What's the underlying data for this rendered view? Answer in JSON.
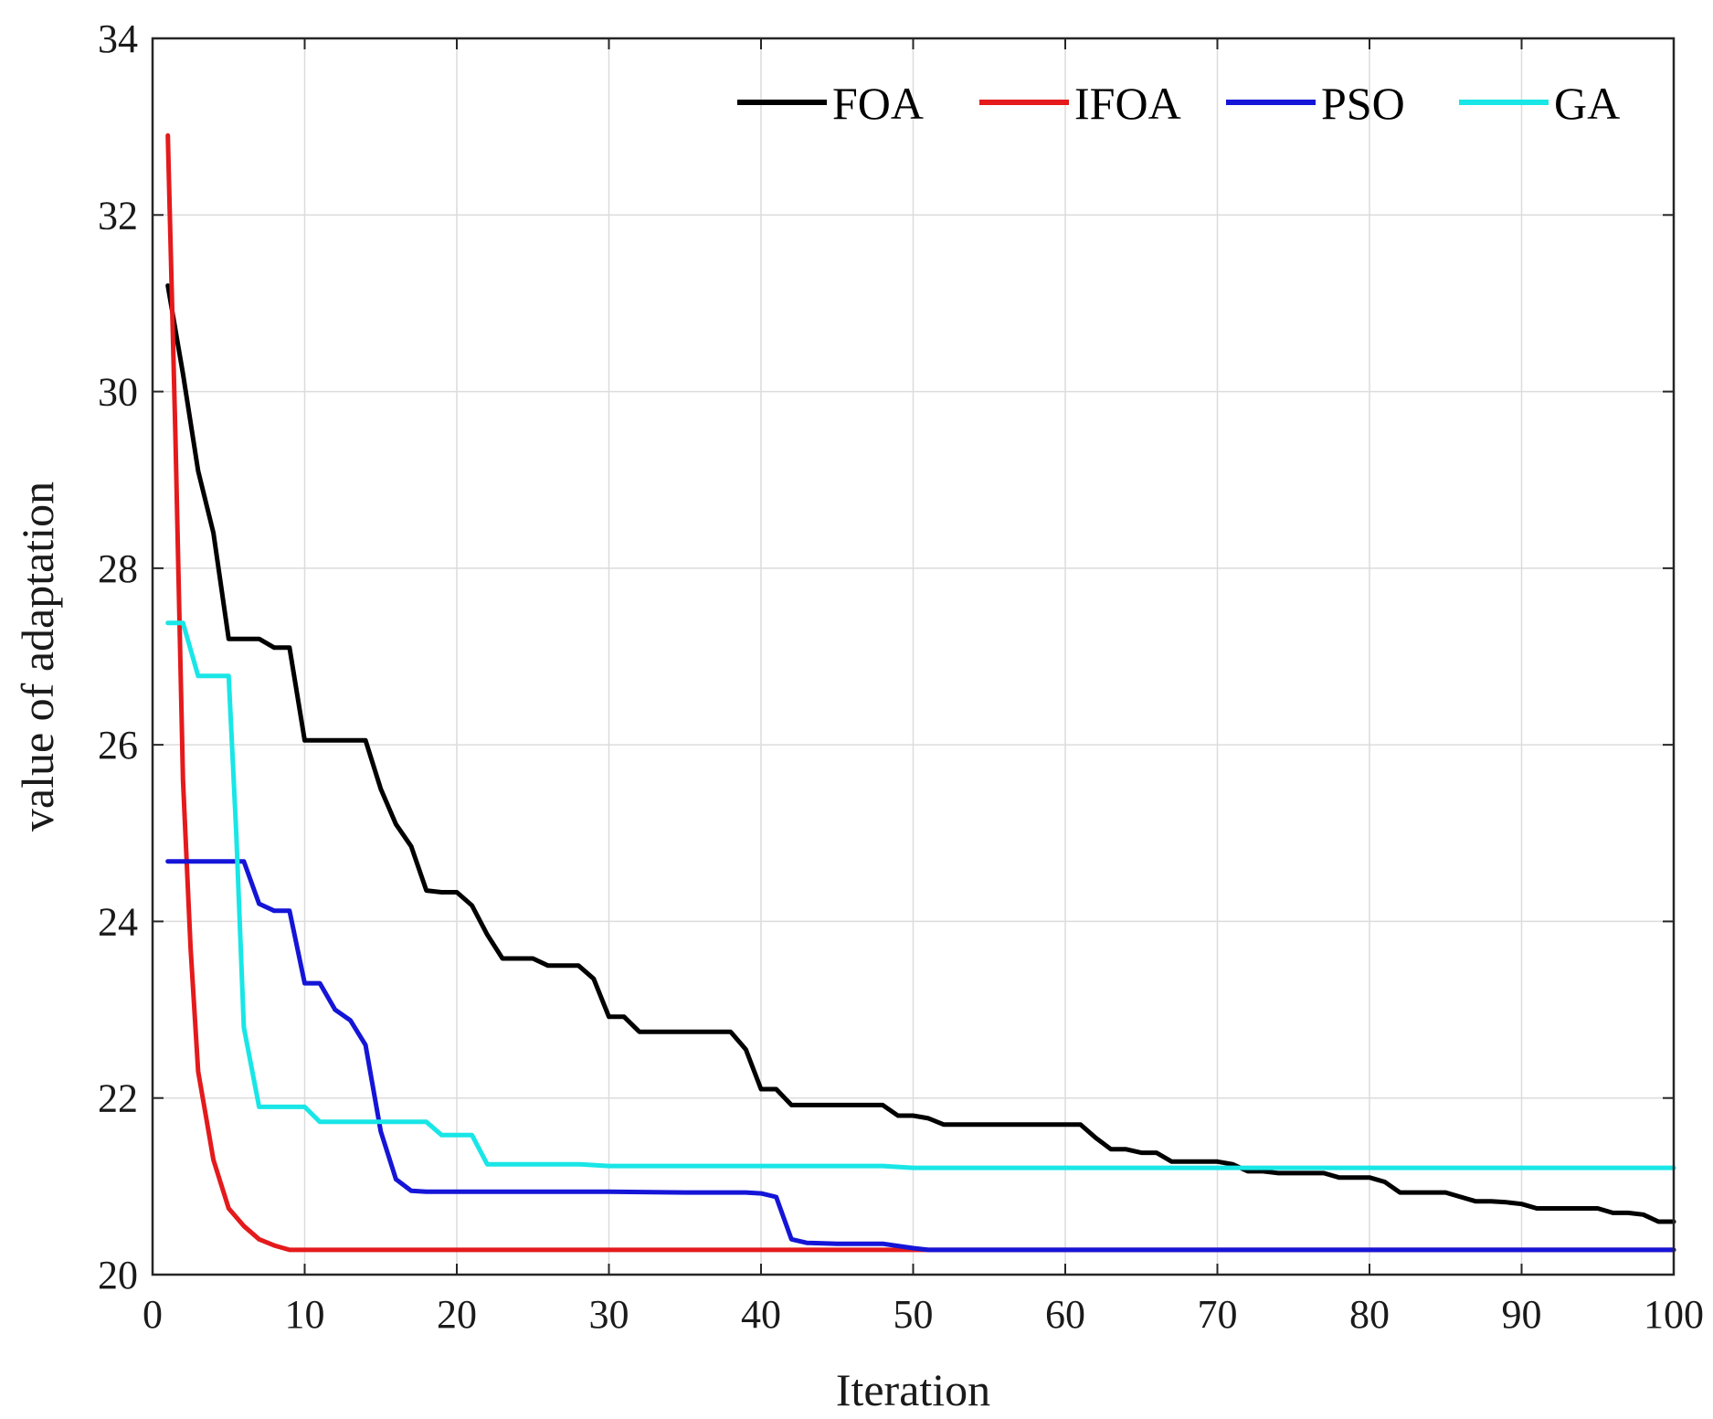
{
  "chart_data": {
    "type": "line",
    "title": "",
    "xlabel": "Iteration",
    "ylabel": "value of adaptation",
    "xlim": [
      0,
      100
    ],
    "ylim": [
      20,
      34
    ],
    "xticks": [
      0,
      10,
      20,
      30,
      40,
      50,
      60,
      70,
      80,
      90,
      100
    ],
    "yticks": [
      20,
      22,
      24,
      26,
      28,
      30,
      32,
      34
    ],
    "grid": true,
    "legend_position": "top-right",
    "series": [
      {
        "name": "FOA",
        "color": "#000000",
        "points": [
          [
            1,
            31.2
          ],
          [
            2,
            30.2
          ],
          [
            3,
            29.1
          ],
          [
            4,
            28.4
          ],
          [
            5,
            27.2
          ],
          [
            6,
            27.2
          ],
          [
            7,
            27.2
          ],
          [
            8,
            27.1
          ],
          [
            9,
            27.1
          ],
          [
            10,
            26.05
          ],
          [
            11,
            26.05
          ],
          [
            12,
            26.05
          ],
          [
            13,
            26.05
          ],
          [
            14,
            26.05
          ],
          [
            15,
            25.5
          ],
          [
            16,
            25.1
          ],
          [
            17,
            24.85
          ],
          [
            18,
            24.35
          ],
          [
            19,
            24.33
          ],
          [
            20,
            24.33
          ],
          [
            21,
            24.18
          ],
          [
            22,
            23.85
          ],
          [
            23,
            23.58
          ],
          [
            24,
            23.58
          ],
          [
            25,
            23.58
          ],
          [
            26,
            23.5
          ],
          [
            27,
            23.5
          ],
          [
            28,
            23.5
          ],
          [
            29,
            23.35
          ],
          [
            30,
            22.92
          ],
          [
            31,
            22.92
          ],
          [
            32,
            22.75
          ],
          [
            33,
            22.75
          ],
          [
            34,
            22.75
          ],
          [
            35,
            22.75
          ],
          [
            36,
            22.75
          ],
          [
            37,
            22.75
          ],
          [
            38,
            22.75
          ],
          [
            39,
            22.55
          ],
          [
            40,
            22.1
          ],
          [
            41,
            22.1
          ],
          [
            42,
            21.92
          ],
          [
            43,
            21.92
          ],
          [
            44,
            21.92
          ],
          [
            45,
            21.92
          ],
          [
            46,
            21.92
          ],
          [
            47,
            21.92
          ],
          [
            48,
            21.92
          ],
          [
            49,
            21.8
          ],
          [
            50,
            21.8
          ],
          [
            51,
            21.77
          ],
          [
            52,
            21.7
          ],
          [
            53,
            21.7
          ],
          [
            54,
            21.7
          ],
          [
            55,
            21.7
          ],
          [
            56,
            21.7
          ],
          [
            57,
            21.7
          ],
          [
            58,
            21.7
          ],
          [
            59,
            21.7
          ],
          [
            60,
            21.7
          ],
          [
            61,
            21.7
          ],
          [
            62,
            21.55
          ],
          [
            63,
            21.42
          ],
          [
            64,
            21.42
          ],
          [
            65,
            21.38
          ],
          [
            66,
            21.38
          ],
          [
            67,
            21.28
          ],
          [
            68,
            21.28
          ],
          [
            69,
            21.28
          ],
          [
            70,
            21.28
          ],
          [
            71,
            21.25
          ],
          [
            72,
            21.17
          ],
          [
            73,
            21.17
          ],
          [
            74,
            21.15
          ],
          [
            75,
            21.15
          ],
          [
            76,
            21.15
          ],
          [
            77,
            21.15
          ],
          [
            78,
            21.1
          ],
          [
            79,
            21.1
          ],
          [
            80,
            21.1
          ],
          [
            81,
            21.05
          ],
          [
            82,
            20.93
          ],
          [
            83,
            20.93
          ],
          [
            84,
            20.93
          ],
          [
            85,
            20.93
          ],
          [
            86,
            20.88
          ],
          [
            87,
            20.83
          ],
          [
            88,
            20.83
          ],
          [
            89,
            20.82
          ],
          [
            90,
            20.8
          ],
          [
            91,
            20.75
          ],
          [
            92,
            20.75
          ],
          [
            93,
            20.75
          ],
          [
            94,
            20.75
          ],
          [
            95,
            20.75
          ],
          [
            96,
            20.7
          ],
          [
            97,
            20.7
          ],
          [
            98,
            20.68
          ],
          [
            99,
            20.6
          ],
          [
            100,
            20.6
          ]
        ]
      },
      {
        "name": "IFOA",
        "color": "#e41a1c",
        "points": [
          [
            1,
            32.9
          ],
          [
            1.5,
            29.5
          ],
          [
            2,
            25.6
          ],
          [
            2.5,
            23.7
          ],
          [
            3,
            22.3
          ],
          [
            3.5,
            21.8
          ],
          [
            4,
            21.3
          ],
          [
            5,
            20.75
          ],
          [
            6,
            20.55
          ],
          [
            7,
            20.4
          ],
          [
            8,
            20.33
          ],
          [
            9,
            20.28
          ],
          [
            10,
            20.28
          ],
          [
            20,
            20.28
          ],
          [
            30,
            20.28
          ],
          [
            40,
            20.28
          ],
          [
            50,
            20.28
          ],
          [
            60,
            20.28
          ],
          [
            70,
            20.28
          ],
          [
            80,
            20.28
          ],
          [
            90,
            20.28
          ],
          [
            100,
            20.28
          ]
        ]
      },
      {
        "name": "PSO",
        "color": "#1515d8",
        "points": [
          [
            1,
            24.68
          ],
          [
            2,
            24.68
          ],
          [
            3,
            24.68
          ],
          [
            4,
            24.68
          ],
          [
            5,
            24.68
          ],
          [
            6,
            24.68
          ],
          [
            7,
            24.2
          ],
          [
            8,
            24.12
          ],
          [
            9,
            24.12
          ],
          [
            10,
            23.3
          ],
          [
            11,
            23.3
          ],
          [
            12,
            23.0
          ],
          [
            13,
            22.88
          ],
          [
            14,
            22.6
          ],
          [
            15,
            21.62
          ],
          [
            16,
            21.08
          ],
          [
            17,
            20.95
          ],
          [
            18,
            20.94
          ],
          [
            20,
            20.94
          ],
          [
            25,
            20.94
          ],
          [
            30,
            20.94
          ],
          [
            35,
            20.93
          ],
          [
            39,
            20.93
          ],
          [
            40,
            20.92
          ],
          [
            41,
            20.88
          ],
          [
            42,
            20.4
          ],
          [
            43,
            20.36
          ],
          [
            45,
            20.35
          ],
          [
            48,
            20.35
          ],
          [
            50,
            20.3
          ],
          [
            51,
            20.28
          ],
          [
            55,
            20.28
          ],
          [
            60,
            20.28
          ],
          [
            70,
            20.28
          ],
          [
            80,
            20.28
          ],
          [
            90,
            20.28
          ],
          [
            100,
            20.28
          ]
        ]
      },
      {
        "name": "GA",
        "color": "#19e6e6",
        "points": [
          [
            1,
            27.38
          ],
          [
            2,
            27.38
          ],
          [
            3,
            26.78
          ],
          [
            4,
            26.78
          ],
          [
            5,
            26.78
          ],
          [
            5.5,
            25.0
          ],
          [
            6,
            22.8
          ],
          [
            7,
            21.9
          ],
          [
            8,
            21.9
          ],
          [
            9,
            21.9
          ],
          [
            10,
            21.9
          ],
          [
            11,
            21.73
          ],
          [
            12,
            21.73
          ],
          [
            13,
            21.73
          ],
          [
            14,
            21.73
          ],
          [
            15,
            21.73
          ],
          [
            16,
            21.73
          ],
          [
            17,
            21.73
          ],
          [
            18,
            21.73
          ],
          [
            19,
            21.58
          ],
          [
            20,
            21.58
          ],
          [
            21,
            21.58
          ],
          [
            22,
            21.25
          ],
          [
            23,
            21.25
          ],
          [
            25,
            21.25
          ],
          [
            28,
            21.25
          ],
          [
            30,
            21.23
          ],
          [
            35,
            21.23
          ],
          [
            40,
            21.23
          ],
          [
            45,
            21.23
          ],
          [
            48,
            21.23
          ],
          [
            50,
            21.21
          ],
          [
            55,
            21.21
          ],
          [
            60,
            21.21
          ],
          [
            70,
            21.21
          ],
          [
            80,
            21.21
          ],
          [
            90,
            21.21
          ],
          [
            100,
            21.21
          ]
        ]
      }
    ]
  }
}
